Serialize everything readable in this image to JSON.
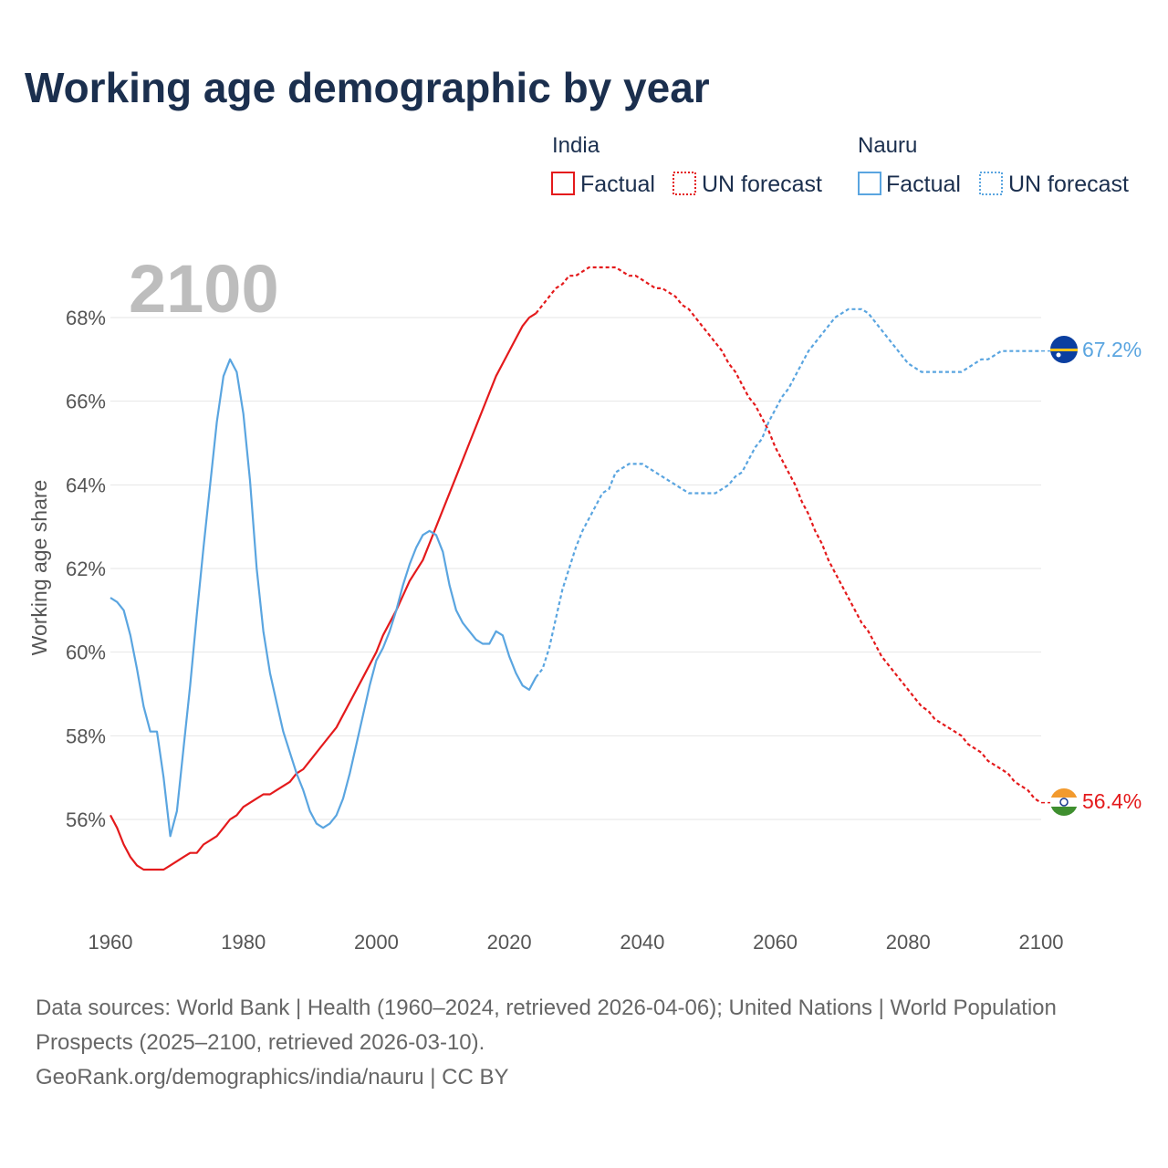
{
  "title": "Working age demographic by year",
  "legend": {
    "groups": [
      {
        "name": "India",
        "color": "#e41a1c",
        "items": [
          {
            "label": "Factual",
            "style": "solid"
          },
          {
            "label": "UN forecast",
            "style": "dotted"
          }
        ]
      },
      {
        "name": "Nauru",
        "color": "#5aa5e0",
        "items": [
          {
            "label": "Factual",
            "style": "solid"
          },
          {
            "label": "UN forecast",
            "style": "dotted"
          }
        ]
      }
    ]
  },
  "current_year": "2100",
  "end_labels": {
    "india": "56.4%",
    "nauru": "67.2%"
  },
  "footer": {
    "sources": "Data sources: World Bank | Health (1960–2024, retrieved 2026-04-06); United Nations | World Population Prospects (2025–2100, retrieved 2026-03-10).",
    "credit": "GeoRank.org/demographics/india/nauru | CC BY"
  },
  "chart_data": {
    "type": "line",
    "title": "Working age demographic by year",
    "xlabel": "",
    "ylabel": "Working age share",
    "xlim": [
      1960,
      2100
    ],
    "ylim": [
      54,
      70
    ],
    "x_ticks": [
      1960,
      1980,
      2000,
      2020,
      2040,
      2060,
      2080,
      2100
    ],
    "y_ticks": [
      56,
      58,
      60,
      62,
      64,
      66,
      68
    ],
    "y_tick_labels": [
      "56%",
      "58%",
      "60%",
      "62%",
      "64%",
      "66%",
      "68%"
    ],
    "grid": "horizontal",
    "forecast_start": 2024,
    "series": [
      {
        "name": "India",
        "color": "#e41a1c",
        "points": [
          [
            1960,
            56.1
          ],
          [
            1961,
            55.8
          ],
          [
            1962,
            55.4
          ],
          [
            1963,
            55.1
          ],
          [
            1964,
            54.9
          ],
          [
            1965,
            54.8
          ],
          [
            1966,
            54.8
          ],
          [
            1967,
            54.8
          ],
          [
            1968,
            54.8
          ],
          [
            1969,
            54.9
          ],
          [
            1970,
            55.0
          ],
          [
            1971,
            55.1
          ],
          [
            1972,
            55.2
          ],
          [
            1973,
            55.2
          ],
          [
            1974,
            55.4
          ],
          [
            1975,
            55.5
          ],
          [
            1976,
            55.6
          ],
          [
            1977,
            55.8
          ],
          [
            1978,
            56.0
          ],
          [
            1979,
            56.1
          ],
          [
            1980,
            56.3
          ],
          [
            1982,
            56.5
          ],
          [
            1983,
            56.6
          ],
          [
            1984,
            56.6
          ],
          [
            1985,
            56.7
          ],
          [
            1987,
            56.9
          ],
          [
            1988,
            57.1
          ],
          [
            1989,
            57.2
          ],
          [
            1990,
            57.4
          ],
          [
            1992,
            57.8
          ],
          [
            1994,
            58.2
          ],
          [
            1996,
            58.8
          ],
          [
            1998,
            59.4
          ],
          [
            2000,
            60.0
          ],
          [
            2001,
            60.4
          ],
          [
            2003,
            61.0
          ],
          [
            2005,
            61.7
          ],
          [
            2007,
            62.2
          ],
          [
            2008,
            62.6
          ],
          [
            2010,
            63.4
          ],
          [
            2012,
            64.2
          ],
          [
            2014,
            65.0
          ],
          [
            2015,
            65.4
          ],
          [
            2017,
            66.2
          ],
          [
            2018,
            66.6
          ],
          [
            2019,
            66.9
          ],
          [
            2020,
            67.2
          ],
          [
            2021,
            67.5
          ],
          [
            2022,
            67.8
          ],
          [
            2023,
            68.0
          ],
          [
            2024,
            68.1
          ],
          [
            2025,
            68.3
          ],
          [
            2026,
            68.5
          ],
          [
            2027,
            68.7
          ],
          [
            2028,
            68.8
          ],
          [
            2029,
            69.0
          ],
          [
            2030,
            69.0
          ],
          [
            2031,
            69.1
          ],
          [
            2032,
            69.2
          ],
          [
            2033,
            69.2
          ],
          [
            2034,
            69.2
          ],
          [
            2035,
            69.2
          ],
          [
            2036,
            69.2
          ],
          [
            2037,
            69.1
          ],
          [
            2038,
            69.0
          ],
          [
            2039,
            69.0
          ],
          [
            2040,
            68.9
          ],
          [
            2041,
            68.8
          ],
          [
            2042,
            68.7
          ],
          [
            2043,
            68.7
          ],
          [
            2044,
            68.6
          ],
          [
            2045,
            68.5
          ],
          [
            2046,
            68.3
          ],
          [
            2047,
            68.2
          ],
          [
            2048,
            68.0
          ],
          [
            2049,
            67.8
          ],
          [
            2050,
            67.6
          ],
          [
            2051,
            67.4
          ],
          [
            2052,
            67.2
          ],
          [
            2053,
            66.9
          ],
          [
            2054,
            66.7
          ],
          [
            2055,
            66.4
          ],
          [
            2056,
            66.1
          ],
          [
            2057,
            65.9
          ],
          [
            2058,
            65.6
          ],
          [
            2059,
            65.3
          ],
          [
            2060,
            64.9
          ],
          [
            2061,
            64.6
          ],
          [
            2062,
            64.3
          ],
          [
            2063,
            64.0
          ],
          [
            2064,
            63.6
          ],
          [
            2065,
            63.3
          ],
          [
            2066,
            62.9
          ],
          [
            2067,
            62.6
          ],
          [
            2068,
            62.2
          ],
          [
            2069,
            61.9
          ],
          [
            2070,
            61.6
          ],
          [
            2071,
            61.3
          ],
          [
            2072,
            61.0
          ],
          [
            2073,
            60.7
          ],
          [
            2074,
            60.5
          ],
          [
            2075,
            60.2
          ],
          [
            2076,
            59.9
          ],
          [
            2077,
            59.7
          ],
          [
            2078,
            59.5
          ],
          [
            2079,
            59.3
          ],
          [
            2080,
            59.1
          ],
          [
            2081,
            58.9
          ],
          [
            2082,
            58.7
          ],
          [
            2083,
            58.6
          ],
          [
            2084,
            58.4
          ],
          [
            2085,
            58.3
          ],
          [
            2086,
            58.2
          ],
          [
            2087,
            58.1
          ],
          [
            2088,
            58.0
          ],
          [
            2089,
            57.8
          ],
          [
            2090,
            57.7
          ],
          [
            2091,
            57.6
          ],
          [
            2092,
            57.4
          ],
          [
            2093,
            57.3
          ],
          [
            2094,
            57.2
          ],
          [
            2095,
            57.1
          ],
          [
            2096,
            56.9
          ],
          [
            2097,
            56.8
          ],
          [
            2098,
            56.7
          ],
          [
            2099,
            56.5
          ],
          [
            2100,
            56.4
          ]
        ]
      },
      {
        "name": "Nauru",
        "color": "#5aa5e0",
        "points": [
          [
            1960,
            61.3
          ],
          [
            1961,
            61.2
          ],
          [
            1962,
            61.0
          ],
          [
            1963,
            60.4
          ],
          [
            1964,
            59.6
          ],
          [
            1965,
            58.7
          ],
          [
            1966,
            58.1
          ],
          [
            1967,
            58.1
          ],
          [
            1968,
            57.0
          ],
          [
            1969,
            55.6
          ],
          [
            1970,
            56.2
          ],
          [
            1971,
            57.7
          ],
          [
            1972,
            59.2
          ],
          [
            1973,
            60.9
          ],
          [
            1974,
            62.5
          ],
          [
            1975,
            64.0
          ],
          [
            1976,
            65.5
          ],
          [
            1977,
            66.6
          ],
          [
            1978,
            67.0
          ],
          [
            1979,
            66.7
          ],
          [
            1980,
            65.7
          ],
          [
            1981,
            64.1
          ],
          [
            1982,
            62.0
          ],
          [
            1983,
            60.5
          ],
          [
            1984,
            59.5
          ],
          [
            1985,
            58.8
          ],
          [
            1986,
            58.1
          ],
          [
            1987,
            57.6
          ],
          [
            1988,
            57.1
          ],
          [
            1989,
            56.7
          ],
          [
            1990,
            56.2
          ],
          [
            1991,
            55.9
          ],
          [
            1992,
            55.8
          ],
          [
            1993,
            55.9
          ],
          [
            1994,
            56.1
          ],
          [
            1995,
            56.5
          ],
          [
            1996,
            57.1
          ],
          [
            1997,
            57.8
          ],
          [
            1998,
            58.5
          ],
          [
            1999,
            59.2
          ],
          [
            2000,
            59.8
          ],
          [
            2001,
            60.1
          ],
          [
            2002,
            60.5
          ],
          [
            2003,
            61.0
          ],
          [
            2004,
            61.6
          ],
          [
            2005,
            62.1
          ],
          [
            2006,
            62.5
          ],
          [
            2007,
            62.8
          ],
          [
            2008,
            62.9
          ],
          [
            2009,
            62.8
          ],
          [
            2010,
            62.4
          ],
          [
            2011,
            61.6
          ],
          [
            2012,
            61.0
          ],
          [
            2013,
            60.7
          ],
          [
            2014,
            60.5
          ],
          [
            2015,
            60.3
          ],
          [
            2016,
            60.2
          ],
          [
            2017,
            60.2
          ],
          [
            2018,
            60.5
          ],
          [
            2019,
            60.4
          ],
          [
            2020,
            59.9
          ],
          [
            2021,
            59.5
          ],
          [
            2022,
            59.2
          ],
          [
            2023,
            59.1
          ],
          [
            2024,
            59.4
          ],
          [
            2025,
            59.6
          ],
          [
            2026,
            60.1
          ],
          [
            2027,
            60.8
          ],
          [
            2028,
            61.5
          ],
          [
            2029,
            62.0
          ],
          [
            2030,
            62.5
          ],
          [
            2031,
            62.9
          ],
          [
            2032,
            63.2
          ],
          [
            2033,
            63.5
          ],
          [
            2034,
            63.8
          ],
          [
            2035,
            63.9
          ],
          [
            2036,
            64.3
          ],
          [
            2037,
            64.4
          ],
          [
            2038,
            64.5
          ],
          [
            2039,
            64.5
          ],
          [
            2040,
            64.5
          ],
          [
            2041,
            64.4
          ],
          [
            2042,
            64.3
          ],
          [
            2043,
            64.2
          ],
          [
            2044,
            64.1
          ],
          [
            2045,
            64.0
          ],
          [
            2046,
            63.9
          ],
          [
            2047,
            63.8
          ],
          [
            2048,
            63.8
          ],
          [
            2049,
            63.8
          ],
          [
            2050,
            63.8
          ],
          [
            2051,
            63.8
          ],
          [
            2052,
            63.9
          ],
          [
            2053,
            64.0
          ],
          [
            2054,
            64.2
          ],
          [
            2055,
            64.3
          ],
          [
            2056,
            64.6
          ],
          [
            2057,
            64.9
          ],
          [
            2058,
            65.1
          ],
          [
            2059,
            65.5
          ],
          [
            2060,
            65.8
          ],
          [
            2061,
            66.1
          ],
          [
            2062,
            66.3
          ],
          [
            2063,
            66.6
          ],
          [
            2064,
            66.9
          ],
          [
            2065,
            67.2
          ],
          [
            2066,
            67.4
          ],
          [
            2067,
            67.6
          ],
          [
            2068,
            67.8
          ],
          [
            2069,
            68.0
          ],
          [
            2070,
            68.1
          ],
          [
            2071,
            68.2
          ],
          [
            2072,
            68.2
          ],
          [
            2073,
            68.2
          ],
          [
            2074,
            68.1
          ],
          [
            2075,
            67.9
          ],
          [
            2076,
            67.7
          ],
          [
            2077,
            67.5
          ],
          [
            2078,
            67.3
          ],
          [
            2079,
            67.1
          ],
          [
            2080,
            66.9
          ],
          [
            2081,
            66.8
          ],
          [
            2082,
            66.7
          ],
          [
            2083,
            66.7
          ],
          [
            2084,
            66.7
          ],
          [
            2085,
            66.7
          ],
          [
            2086,
            66.7
          ],
          [
            2087,
            66.7
          ],
          [
            2088,
            66.7
          ],
          [
            2089,
            66.8
          ],
          [
            2090,
            66.9
          ],
          [
            2091,
            67.0
          ],
          [
            2092,
            67.0
          ],
          [
            2093,
            67.1
          ],
          [
            2094,
            67.2
          ],
          [
            2095,
            67.2
          ],
          [
            2096,
            67.2
          ],
          [
            2097,
            67.2
          ],
          [
            2098,
            67.2
          ],
          [
            2099,
            67.2
          ],
          [
            2100,
            67.2
          ]
        ]
      }
    ]
  }
}
